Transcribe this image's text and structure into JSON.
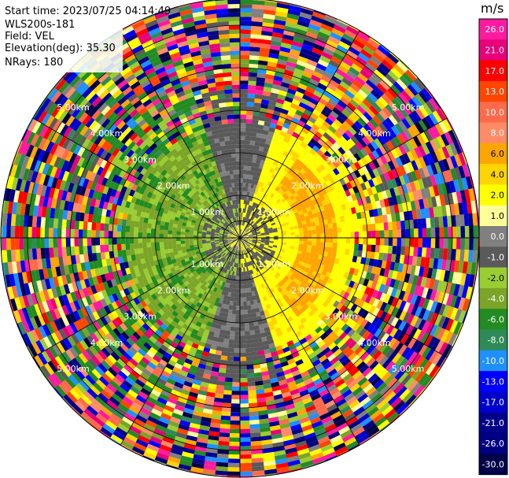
{
  "info": {
    "start_time": "Start time: 2023/07/25 04:14:49",
    "instrument": "WLS200s-181",
    "field": "Field: VEL",
    "elevation": "Elevation(deg): 35.30",
    "nrays": "NRays: 180"
  },
  "range_rings": [
    "1.00km",
    "2.00km",
    "3.00km",
    "4.00km",
    "5.00km"
  ],
  "colorbar": {
    "unit": "m/s",
    "ticks": [
      "26.0",
      "21.0",
      "17.0",
      "13.0",
      "10.0",
      "8.0",
      "6.0",
      "4.0",
      "2.0",
      "1.0",
      "0.0",
      "-1.0",
      "-2.0",
      "-4.0",
      "-6.0",
      "-8.0",
      "-10.0",
      "-13.0",
      "-17.0",
      "-21.0",
      "-26.0",
      "-30.0"
    ],
    "colors": [
      "#ff1aa0",
      "#e8007a",
      "#ff0000",
      "#ff4500",
      "#ff6a4a",
      "#ff8c66",
      "#ffa500",
      "#ffd400",
      "#ffff00",
      "#ffff99",
      "#808080",
      "#5a5a5a",
      "#9acd32",
      "#7ba428",
      "#228b22",
      "#2e8b57",
      "#1e90ff",
      "#0000ff",
      "#0000cd",
      "#00008b",
      "#000080",
      "#00004a"
    ]
  },
  "chart_data": {
    "type": "heatmap",
    "title": "",
    "field": "VEL",
    "unit": "m/s",
    "elevation_deg": 35.3,
    "nrays": 180,
    "range_rings_km": [
      1.0,
      2.0,
      3.0,
      4.0,
      5.0
    ],
    "max_range_km": 5.6,
    "color_levels": [
      26.0,
      21.0,
      17.0,
      13.0,
      10.0,
      8.0,
      6.0,
      4.0,
      2.0,
      1.0,
      0.0,
      -1.0,
      -2.0,
      -4.0,
      -6.0,
      -8.0,
      -10.0,
      -13.0,
      -17.0,
      -21.0,
      -26.0,
      -30.0
    ]
  }
}
